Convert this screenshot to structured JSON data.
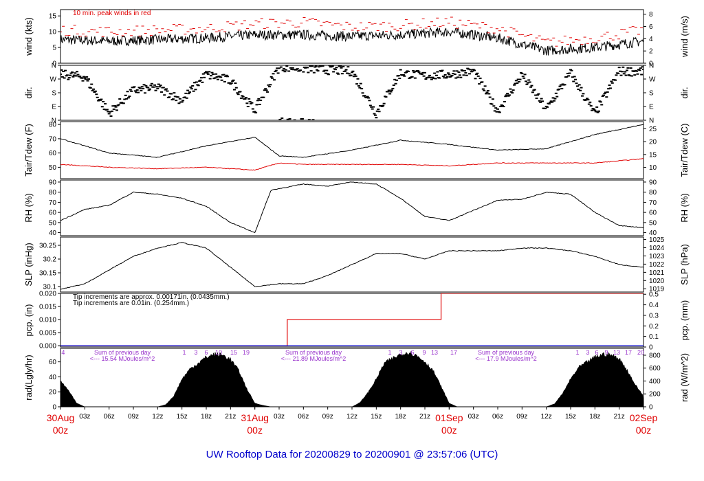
{
  "title": "UW Rooftop Data for 20200829  to  20200901 @ 23:57:06  (UTC)",
  "chart_data": {
    "type": "line",
    "x_axis": {
      "range": [
        "2020-08-30T00:00Z",
        "2020-09-02T00:00Z"
      ],
      "hour_ticks": [
        "03z",
        "06z",
        "09z",
        "12z",
        "15z",
        "18z",
        "21z",
        "00z",
        "03z",
        "06z",
        "09z",
        "12z",
        "15z",
        "18z",
        "21z",
        "00z",
        "03z",
        "06z",
        "09z",
        "12z",
        "15z",
        "18z",
        "21z",
        "00z"
      ],
      "date_labels": [
        {
          "date": "30Aug",
          "hour": "00z"
        },
        {
          "date": "31Aug",
          "hour": "00z"
        },
        {
          "date": "01Sep",
          "hour": "00z"
        },
        {
          "date": "02Sep",
          "hour": "00z"
        }
      ]
    },
    "panels": [
      {
        "id": "wind",
        "ylabel_left": "wind (kts)",
        "ylabel_right": "wind (m/s)",
        "ylim": [
          0,
          17
        ],
        "ticks_left": [
          0,
          5,
          10,
          15
        ],
        "ylim_right": [
          0,
          8.75
        ],
        "ticks_right": [
          0,
          2,
          4,
          6,
          8
        ],
        "annotation": "10 min. peak winds in red",
        "series": [
          {
            "color": "#000000",
            "x_hours": [
              0,
              6,
              12,
              18,
              24,
              30,
              36,
              42,
              48,
              54,
              60,
              66,
              72
            ],
            "values": [
              7.5,
              7,
              7.5,
              8,
              9,
              9,
              8.5,
              9,
              10,
              8,
              4,
              5,
              7
            ]
          },
          {
            "color": "#e00000",
            "style": "dashes",
            "x_hours": [
              0,
              6,
              12,
              18,
              24,
              30,
              36,
              42,
              48,
              54,
              60,
              66,
              72
            ],
            "values": [
              10.5,
              10,
              10.5,
              11,
              12.5,
              13,
              11.5,
              12,
              13,
              11,
              6.5,
              8,
              10.5
            ]
          }
        ]
      },
      {
        "id": "dir",
        "ylabel_left": "dir.",
        "ylabel_right": "dir.",
        "ticks_left": [
          "N",
          "E",
          "S",
          "W",
          "N"
        ],
        "ticks_right": [
          "N",
          "E",
          "S",
          "W",
          "N"
        ],
        "ylim": [
          0,
          360
        ],
        "tick_values": [
          0,
          90,
          180,
          270,
          360
        ],
        "series": [
          {
            "color": "#000000",
            "style": "scatter",
            "x_hours": [
              0,
              3,
              6,
              9,
              12,
              15,
              18,
              21,
              24,
              27,
              30,
              33,
              36,
              39,
              42,
              45,
              48,
              51,
              54,
              57,
              60,
              63,
              66,
              69,
              72
            ],
            "values": [
              300,
              285,
              45,
              195,
              215,
              130,
              300,
              260,
              65,
              350,
              340,
              330,
              320,
              45,
              310,
              290,
              300,
              320,
              60,
              300,
              70,
              310,
              40,
              320,
              320
            ]
          }
        ]
      },
      {
        "id": "temp",
        "ylabel_left": "Tair/Tdew (F)",
        "ylabel_right": "Tair/Tdew (C)",
        "ylim": [
          42,
          82
        ],
        "ticks_left": [
          50,
          60,
          70,
          80
        ],
        "ylim_right": [
          5.6,
          27.8
        ],
        "ticks_right": [
          10,
          15,
          20,
          25
        ],
        "series": [
          {
            "color": "#000000",
            "x_hours": [
              0,
              6,
              12,
              18,
              24,
              27,
              30,
              36,
              42,
              48,
              54,
              60,
              66,
              72
            ],
            "values": [
              70,
              60,
              57,
              65,
              71,
              58,
              57,
              62,
              69,
              66,
              62,
              63,
              73,
              80
            ]
          },
          {
            "color": "#e00000",
            "x_hours": [
              0,
              6,
              12,
              18,
              24,
              27,
              30,
              36,
              42,
              48,
              54,
              60,
              66,
              72
            ],
            "values": [
              52,
              50,
              49,
              50,
              48,
              53,
              52,
              52,
              52,
              51,
              53,
              53,
              53,
              56
            ]
          }
        ]
      },
      {
        "id": "rh",
        "ylabel_left": "RH (%)",
        "ylabel_right": "RH (%)",
        "ylim": [
          37,
          92
        ],
        "ticks_left": [
          40,
          50,
          60,
          70,
          80,
          90
        ],
        "ticks_right": [
          40,
          50,
          60,
          70,
          80,
          90
        ],
        "series": [
          {
            "color": "#000000",
            "x_hours": [
              0,
              3,
              6,
              9,
              12,
              15,
              18,
              21,
              24,
              26,
              30,
              33,
              36,
              39,
              42,
              45,
              48,
              51,
              54,
              57,
              60,
              63,
              66,
              69,
              72
            ],
            "values": [
              52,
              63,
              67,
              80,
              78,
              74,
              66,
              50,
              40,
              82,
              88,
              86,
              90,
              88,
              74,
              56,
              52,
              62,
              72,
              73,
              80,
              78,
              60,
              47,
              45
            ]
          }
        ]
      },
      {
        "id": "slp",
        "ylabel_left": "SLP (inHg)",
        "ylabel_right": "SLP (hPa)",
        "ylim": [
          30.08,
          30.28
        ],
        "ticks_left": [
          30.1,
          30.15,
          30.2,
          30.25
        ],
        "ylim_right": [
          1018.6,
          1025.3
        ],
        "ticks_right": [
          1019,
          1020,
          1021,
          1022,
          1023,
          1024,
          1025
        ],
        "series": [
          {
            "color": "#000000",
            "x_hours": [
              0,
              3,
              6,
              9,
              12,
              15,
              18,
              21,
              24,
              27,
              30,
              33,
              36,
              39,
              42,
              45,
              48,
              51,
              54,
              57,
              60,
              63,
              66,
              69,
              72
            ],
            "values": [
              30.09,
              30.11,
              30.16,
              30.21,
              30.24,
              30.26,
              30.24,
              30.17,
              30.1,
              30.11,
              30.11,
              30.14,
              30.18,
              30.22,
              30.22,
              30.2,
              30.23,
              30.23,
              30.23,
              30.24,
              30.24,
              30.23,
              30.21,
              30.18,
              30.17
            ]
          }
        ]
      },
      {
        "id": "pcp",
        "ylabel_left": "pcp. (in)",
        "ylabel_right": "pcp. (mm)",
        "ylim": [
          -0.0005,
          0.02
        ],
        "ticks_left": [
          "0.000",
          "0.005",
          "0.010",
          "0.015",
          "0.020"
        ],
        "ylim_right": [
          0,
          0.508
        ],
        "ticks_right": [
          0,
          0.1,
          0.2,
          0.3,
          0.4,
          0.5
        ],
        "annotations": [
          {
            "text": "Tip increments are approx. 0.00171in. (0.0435mm.)",
            "color": "#e00000"
          },
          {
            "text": "Tip increments are 0.01in. (0.254mm.)",
            "color": "#0000cc"
          }
        ],
        "series": [
          {
            "color": "#e00000",
            "style": "step",
            "x_hours": [
              0,
              28,
              28,
              47,
              47,
              72
            ],
            "values": [
              0,
              0,
              0.01,
              0.01,
              0.02,
              0.02
            ]
          },
          {
            "color": "#0000cc",
            "style": "step",
            "x_hours": [
              0,
              72
            ],
            "values": [
              0,
              0
            ]
          }
        ]
      },
      {
        "id": "rad",
        "ylabel_left": "rad(Lgly/hr)",
        "ylabel_right": "rad (W/m^2)",
        "ylim": [
          0,
          78
        ],
        "ticks_left": [
          0,
          20,
          40,
          60
        ],
        "ylim_right": [
          0,
          906
        ],
        "ticks_right": [
          0,
          200,
          400,
          600,
          800
        ],
        "type": "area",
        "series": [
          {
            "color": "#000000",
            "x_hours": [
              0,
              1,
              2,
              3,
              12,
              13,
              14,
              15,
              16,
              18,
              19,
              20,
              21,
              22,
              23,
              24,
              25,
              26,
              27,
              36,
              37,
              38,
              39,
              40,
              42,
              43,
              44,
              45,
              46,
              47,
              48,
              49,
              60,
              61,
              62,
              63,
              64,
              66,
              67,
              68,
              69,
              70,
              71,
              72
            ],
            "values": [
              35,
              22,
              5,
              0,
              0,
              3,
              15,
              38,
              52,
              68,
              72,
              71,
              65,
              50,
              25,
              5,
              2,
              0,
              0,
              0,
              6,
              20,
              38,
              60,
              72,
              75,
              70,
              62,
              50,
              28,
              5,
              0,
              0,
              4,
              18,
              38,
              54,
              68,
              72,
              71,
              66,
              50,
              30,
              15
            ]
          }
        ],
        "day_summaries": [
          {
            "label": "Sum of previous day",
            "value": "<--- 15.54 MJoules/m^2"
          },
          {
            "label": "Sum of previous day",
            "value": "<--- 21.89 MJoules/m^2"
          },
          {
            "label": "Sum of previous day",
            "value": "<--- 17.9 MJoules/m^2"
          }
        ],
        "hour_marks": [
          "'4",
          "1",
          "3",
          "6",
          "10",
          "15",
          "19",
          "1",
          "3",
          "6",
          "9",
          "13",
          "17",
          "1",
          "3",
          "6",
          "9",
          "13",
          "17",
          "20"
        ]
      }
    ]
  }
}
